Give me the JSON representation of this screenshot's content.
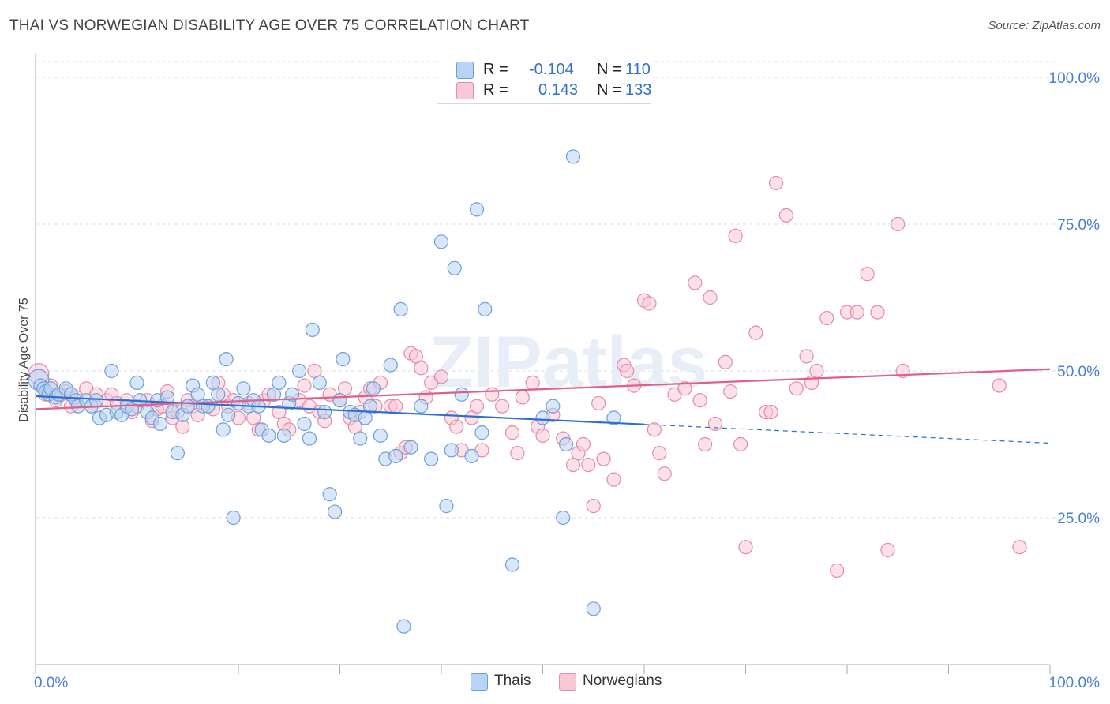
{
  "title": "THAI VS NORWEGIAN DISABILITY AGE OVER 75 CORRELATION CHART",
  "source": "Source: ZipAtlas.com",
  "watermark": "ZIPatlas",
  "legend_stats": [
    {
      "r_label": "R =",
      "r_value": "-0.104",
      "n_label": "N =",
      "n_value": "110"
    },
    {
      "r_label": "R =",
      "r_value": "0.143",
      "n_label": "N =",
      "n_value": "133"
    }
  ],
  "legend_bottom": [
    "Thais",
    "Norwegians"
  ],
  "colors": {
    "thai_fill": "#b8d4f4",
    "thai_stroke": "#6d9fd8",
    "thai_line": "#2d6fce",
    "norw_fill": "#f9c8d6",
    "norw_stroke": "#e58aa8",
    "norw_line": "#e0608a",
    "tick_text": "#4a7fd4",
    "grid": "#dddddd"
  },
  "chart_data": {
    "type": "scatter",
    "xlabel": "",
    "ylabel": "Disability Age Over 75",
    "xlim": [
      0,
      100
    ],
    "ylim": [
      0,
      100
    ],
    "x_tick_labels": [
      "0.0%",
      "100.0%"
    ],
    "y_tick_labels": [
      "25.0%",
      "50.0%",
      "75.0%",
      "100.0%"
    ],
    "y_ticks": [
      25,
      50,
      75,
      100
    ],
    "grid": true,
    "series": [
      {
        "name": "Thais",
        "trend": {
          "x0": 0,
          "y0": 45.7,
          "x1": 60,
          "y1": 40.9,
          "dash_to": 100,
          "dash_y": 37.7
        },
        "points": [
          [
            0.3,
            48.5
          ],
          [
            0.5,
            47.5
          ],
          [
            0.8,
            47
          ],
          [
            1,
            46.5
          ],
          [
            1.3,
            46
          ],
          [
            1.5,
            47
          ],
          [
            2,
            45.5
          ],
          [
            2.3,
            46
          ],
          [
            3,
            47
          ],
          [
            3.5,
            46
          ],
          [
            4,
            45
          ],
          [
            4.2,
            44
          ],
          [
            5,
            45
          ],
          [
            5.5,
            44
          ],
          [
            6,
            45
          ],
          [
            6.3,
            42
          ],
          [
            7,
            42.5
          ],
          [
            7.5,
            50
          ],
          [
            8,
            43
          ],
          [
            8.5,
            42.5
          ],
          [
            9,
            44
          ],
          [
            9.5,
            43.5
          ],
          [
            10,
            48
          ],
          [
            10.3,
            45
          ],
          [
            11,
            43
          ],
          [
            11.5,
            42
          ],
          [
            12,
            45
          ],
          [
            12.3,
            41
          ],
          [
            13,
            45.5
          ],
          [
            13.5,
            43
          ],
          [
            14,
            36
          ],
          [
            14.5,
            42.5
          ],
          [
            15,
            44
          ],
          [
            15.5,
            47.5
          ],
          [
            16,
            46
          ],
          [
            16.5,
            44
          ],
          [
            17,
            44
          ],
          [
            17.5,
            48
          ],
          [
            18,
            46
          ],
          [
            18.5,
            40
          ],
          [
            18.8,
            52
          ],
          [
            19,
            42.5
          ],
          [
            19.5,
            25
          ],
          [
            20,
            44.5
          ],
          [
            20.5,
            47
          ],
          [
            21,
            44
          ],
          [
            21.5,
            45
          ],
          [
            22,
            44
          ],
          [
            22.3,
            40
          ],
          [
            23,
            39
          ],
          [
            23.5,
            46
          ],
          [
            24,
            48
          ],
          [
            24.5,
            39
          ],
          [
            25,
            44.5
          ],
          [
            25.3,
            46
          ],
          [
            26,
            50
          ],
          [
            26.5,
            41
          ],
          [
            27,
            38.5
          ],
          [
            27.3,
            57
          ],
          [
            28,
            48
          ],
          [
            28.5,
            43
          ],
          [
            29,
            29
          ],
          [
            29.5,
            26
          ],
          [
            30,
            45
          ],
          [
            30.3,
            52
          ],
          [
            31,
            43
          ],
          [
            31.5,
            42.5
          ],
          [
            32,
            38.5
          ],
          [
            32.5,
            42
          ],
          [
            33,
            44
          ],
          [
            33.3,
            47
          ],
          [
            34,
            39
          ],
          [
            34.5,
            35
          ],
          [
            35,
            51
          ],
          [
            35.5,
            35.5
          ],
          [
            36,
            60.5
          ],
          [
            36.3,
            6.5
          ],
          [
            37,
            37
          ],
          [
            38,
            44
          ],
          [
            39,
            35
          ],
          [
            40,
            72
          ],
          [
            40.5,
            27
          ],
          [
            41,
            36.5
          ],
          [
            41.3,
            67.5
          ],
          [
            42,
            46
          ],
          [
            43,
            35.5
          ],
          [
            43.5,
            77.5
          ],
          [
            44,
            39.5
          ],
          [
            44.3,
            60.5
          ],
          [
            47,
            17
          ],
          [
            50,
            42
          ],
          [
            51,
            44
          ],
          [
            52,
            25
          ],
          [
            52.3,
            37.5
          ],
          [
            53,
            86.5
          ],
          [
            55,
            9.5
          ],
          [
            57,
            42
          ]
        ]
      },
      {
        "name": "Norwegians",
        "trend": {
          "x0": 0,
          "y0": 43.5,
          "x1": 100,
          "y1": 50.3
        },
        "points": [
          [
            0.3,
            49.5
          ],
          [
            1,
            46
          ],
          [
            1.5,
            47.5
          ],
          [
            2,
            45
          ],
          [
            2.5,
            46
          ],
          [
            3,
            46.5
          ],
          [
            3.5,
            44
          ],
          [
            4,
            45.5
          ],
          [
            5,
            47
          ],
          [
            5.5,
            44
          ],
          [
            6,
            46
          ],
          [
            7,
            45
          ],
          [
            7.5,
            46
          ],
          [
            8,
            44.5
          ],
          [
            9,
            45
          ],
          [
            9.5,
            43
          ],
          [
            10,
            44
          ],
          [
            11,
            45
          ],
          [
            11.5,
            41.5
          ],
          [
            12,
            43.5
          ],
          [
            12.5,
            44
          ],
          [
            13,
            46.5
          ],
          [
            13.5,
            42
          ],
          [
            14,
            43
          ],
          [
            14.5,
            40.5
          ],
          [
            15,
            45
          ],
          [
            15.5,
            44
          ],
          [
            16,
            42.5
          ],
          [
            17,
            44
          ],
          [
            17.5,
            43.5
          ],
          [
            18,
            48
          ],
          [
            18.5,
            46
          ],
          [
            19,
            44
          ],
          [
            19.5,
            45
          ],
          [
            20,
            42
          ],
          [
            21,
            44.5
          ],
          [
            21.5,
            42
          ],
          [
            22,
            40
          ],
          [
            22.5,
            45
          ],
          [
            23,
            46
          ],
          [
            24,
            43
          ],
          [
            24.5,
            41
          ],
          [
            25,
            40
          ],
          [
            26,
            45
          ],
          [
            26.5,
            47.5
          ],
          [
            27,
            44
          ],
          [
            27.5,
            50
          ],
          [
            28,
            43
          ],
          [
            28.5,
            41.5
          ],
          [
            29,
            46
          ],
          [
            30,
            45
          ],
          [
            30.5,
            47
          ],
          [
            31,
            42
          ],
          [
            31.5,
            40.5
          ],
          [
            32,
            43
          ],
          [
            32.5,
            45.5
          ],
          [
            33,
            47
          ],
          [
            33.5,
            44
          ],
          [
            34,
            48
          ],
          [
            35,
            44
          ],
          [
            35.5,
            44
          ],
          [
            36,
            36
          ],
          [
            36.5,
            37
          ],
          [
            37,
            53
          ],
          [
            37.5,
            52.5
          ],
          [
            38,
            50.5
          ],
          [
            38.5,
            45.5
          ],
          [
            39,
            48
          ],
          [
            40,
            49
          ],
          [
            41,
            42
          ],
          [
            41.5,
            40.5
          ],
          [
            42,
            36.5
          ],
          [
            43,
            42
          ],
          [
            43.5,
            44
          ],
          [
            44,
            36.5
          ],
          [
            45,
            46
          ],
          [
            46,
            44
          ],
          [
            47,
            39.5
          ],
          [
            47.5,
            36
          ],
          [
            48,
            45.5
          ],
          [
            49,
            48
          ],
          [
            49.5,
            40.5
          ],
          [
            50,
            39
          ],
          [
            51,
            42.5
          ],
          [
            52,
            38.5
          ],
          [
            53,
            34
          ],
          [
            53.5,
            36
          ],
          [
            54,
            37.5
          ],
          [
            54.5,
            34
          ],
          [
            55,
            27
          ],
          [
            55.5,
            44.5
          ],
          [
            56,
            35
          ],
          [
            57,
            31.5
          ],
          [
            58,
            51
          ],
          [
            58.3,
            50
          ],
          [
            59,
            47.5
          ],
          [
            60,
            62
          ],
          [
            60.5,
            61.5
          ],
          [
            61,
            40
          ],
          [
            61.5,
            36
          ],
          [
            62,
            32.5
          ],
          [
            63,
            46
          ],
          [
            64,
            47
          ],
          [
            65,
            65
          ],
          [
            65.5,
            45
          ],
          [
            66,
            37.5
          ],
          [
            66.5,
            62.5
          ],
          [
            67,
            41
          ],
          [
            68,
            51.5
          ],
          [
            68.5,
            46.5
          ],
          [
            69,
            73
          ],
          [
            69.5,
            37.5
          ],
          [
            70,
            20
          ],
          [
            71,
            56.5
          ],
          [
            72,
            43
          ],
          [
            72.5,
            43
          ],
          [
            73,
            82
          ],
          [
            74,
            76.5
          ],
          [
            75,
            47
          ],
          [
            76,
            52.5
          ],
          [
            76.5,
            48
          ],
          [
            77,
            50
          ],
          [
            78,
            59
          ],
          [
            79,
            16
          ],
          [
            80,
            60
          ],
          [
            81,
            60
          ],
          [
            82,
            66.5
          ],
          [
            83,
            60
          ],
          [
            84,
            19.5
          ],
          [
            85,
            75
          ],
          [
            85.5,
            50
          ],
          [
            95,
            47.5
          ],
          [
            97,
            20
          ]
        ]
      }
    ]
  }
}
